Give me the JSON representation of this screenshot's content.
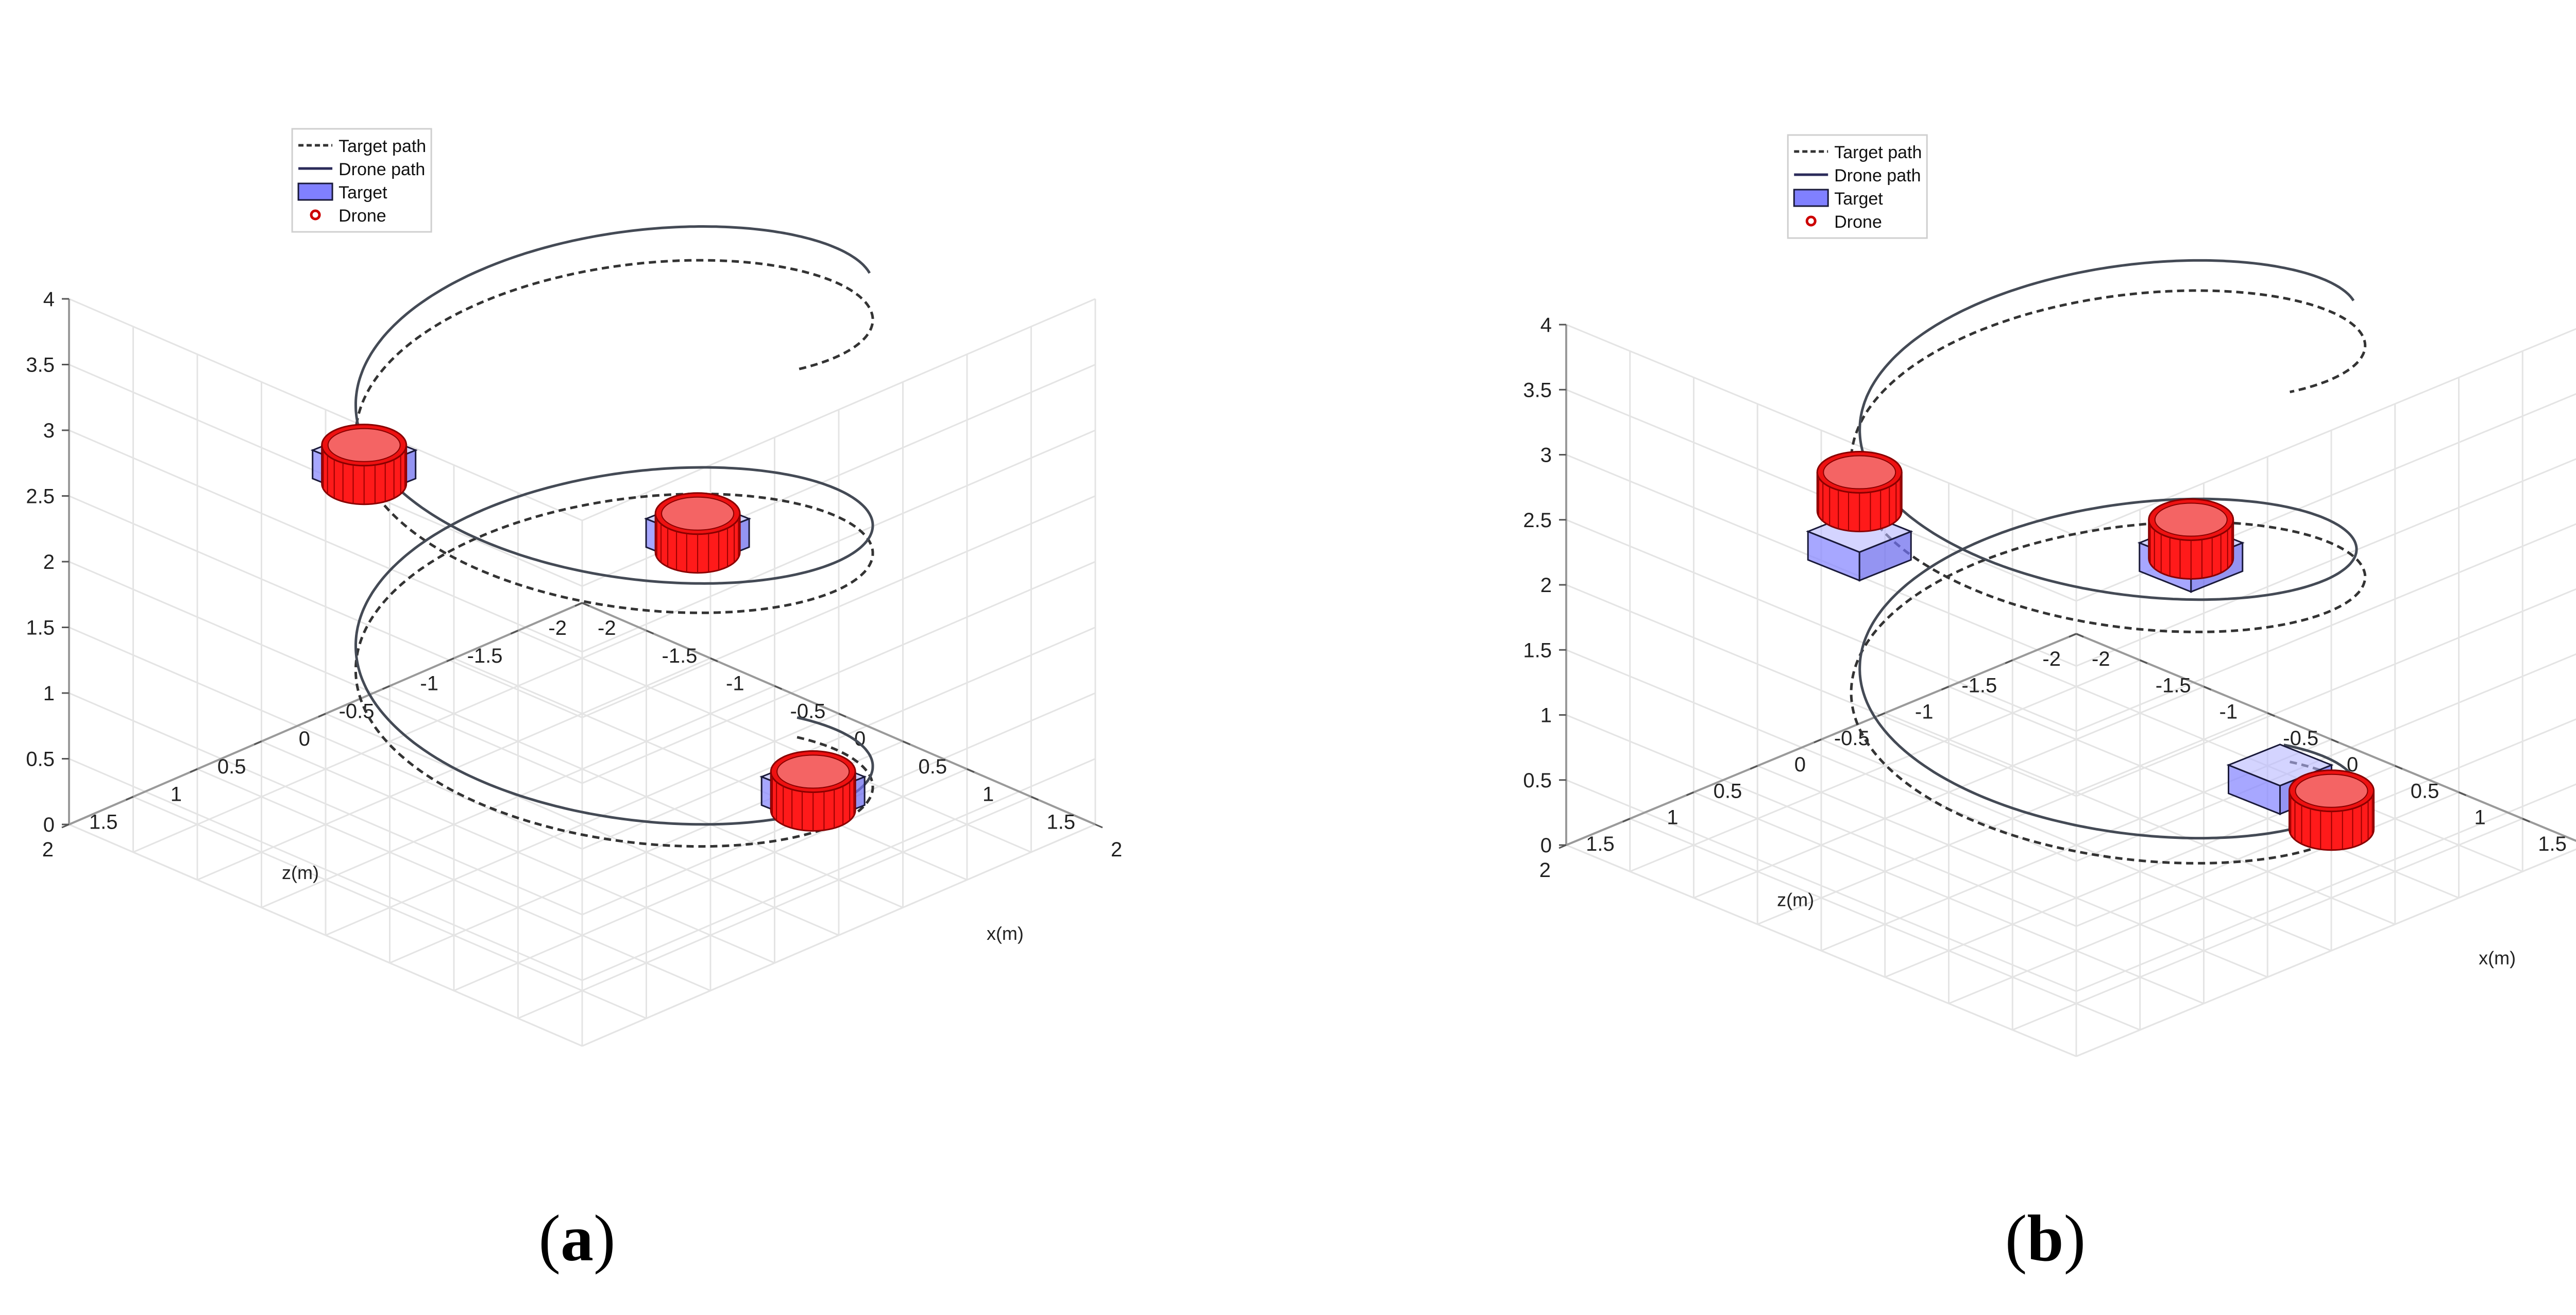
{
  "panels": [
    {
      "label": "a",
      "chart_data": {
        "type": "line",
        "projection": "3d",
        "xlabel": "x(m)",
        "ylabel": "z(m)",
        "zlabel": "",
        "xlim": [
          -2,
          2
        ],
        "ylim": [
          -2,
          2
        ],
        "zlim": [
          0,
          4
        ],
        "xticks": [
          "-2",
          "-1.5",
          "-1",
          "-0.5",
          "0",
          "0.5",
          "1",
          "1.5",
          "2"
        ],
        "yticks": [
          "-2",
          "-1.5",
          "-1",
          "-0.5",
          "0",
          "0.5",
          "1",
          "1.5",
          "2"
        ],
        "zticks": [
          "0",
          "0.5",
          "1",
          "1.5",
          "2",
          "2.5",
          "3",
          "3.5",
          "4"
        ],
        "grid": true,
        "legend_position": "top-center",
        "legend": [
          {
            "label": "Target path",
            "style": "dashed-line",
            "color": "#333333"
          },
          {
            "label": "Drone path",
            "style": "solid-line",
            "color": "#2b2b5a"
          },
          {
            "label": "Target",
            "style": "patch",
            "color": "#8080ff"
          },
          {
            "label": "Drone",
            "style": "circle-marker",
            "color": "#cc0000"
          }
        ],
        "series": [
          {
            "name": "Target path",
            "style": "dashed",
            "helix": {
              "radius": 1.5,
              "z_start": 0,
              "z_end": 4,
              "turns": 2.25
            }
          },
          {
            "name": "Drone path",
            "style": "solid",
            "helix": {
              "radius": 1.5,
              "z_start": 0.15,
              "z_end": 4,
              "turns": 2.1
            }
          }
        ],
        "objects": [
          {
            "x": -1.5,
            "y": 0.2,
            "z": 2.3,
            "target": true,
            "drone": true
          },
          {
            "x": 0.3,
            "y": -0.6,
            "z": 2.2,
            "target": true,
            "drone": true
          },
          {
            "x": 1.3,
            "y": -0.5,
            "z": 0.7,
            "target": true,
            "drone": true
          }
        ]
      }
    },
    {
      "label": "b",
      "chart_data": {
        "type": "line",
        "projection": "3d",
        "xlabel": "x(m)",
        "ylabel": "z(m)",
        "zlabel": "",
        "xlim": [
          -2,
          2
        ],
        "ylim": [
          -2,
          2
        ],
        "zlim": [
          0,
          4
        ],
        "xticks": [
          "-2",
          "-1.5",
          "-1",
          "-0.5",
          "0",
          "0.5",
          "1",
          "1.5",
          "2"
        ],
        "yticks": [
          "-2",
          "-1.5",
          "-1",
          "-0.5",
          "0",
          "0.5",
          "1",
          "1.5",
          "2"
        ],
        "zticks": [
          "0",
          "0.5",
          "1",
          "1.5",
          "2",
          "2.5",
          "3",
          "3.5",
          "4"
        ],
        "grid": true,
        "legend_position": "top-center",
        "legend": [
          {
            "label": "Target path",
            "style": "dashed-line",
            "color": "#333333"
          },
          {
            "label": "Drone path",
            "style": "solid-line",
            "color": "#2b2b5a"
          },
          {
            "label": "Target",
            "style": "patch",
            "color": "#8080ff"
          },
          {
            "label": "Drone",
            "style": "circle-marker",
            "color": "#cc0000"
          }
        ],
        "series": [
          {
            "name": "Target path",
            "style": "dashed",
            "helix": {
              "radius": 1.5,
              "z_start": 0,
              "z_end": 4,
              "turns": 2.25
            }
          },
          {
            "name": "Drone path",
            "style": "solid",
            "helix": {
              "radius": 1.45,
              "z_start": 0.15,
              "z_end": 4,
              "turns": 2.1
            }
          }
        ],
        "objects": [
          {
            "x": -1.5,
            "y": 0.2,
            "z": 2.1,
            "target": true,
            "drone": true
          },
          {
            "x": 0.3,
            "y": -0.6,
            "z": 2.3,
            "target": true,
            "drone": true
          },
          {
            "x": 1.3,
            "y": -0.5,
            "z": 0.9,
            "target": true,
            "drone": true
          }
        ]
      }
    }
  ],
  "captions": [
    {
      "open": "(",
      "letter": "a",
      "close": ")"
    },
    {
      "open": "(",
      "letter": "b",
      "close": ")"
    }
  ]
}
